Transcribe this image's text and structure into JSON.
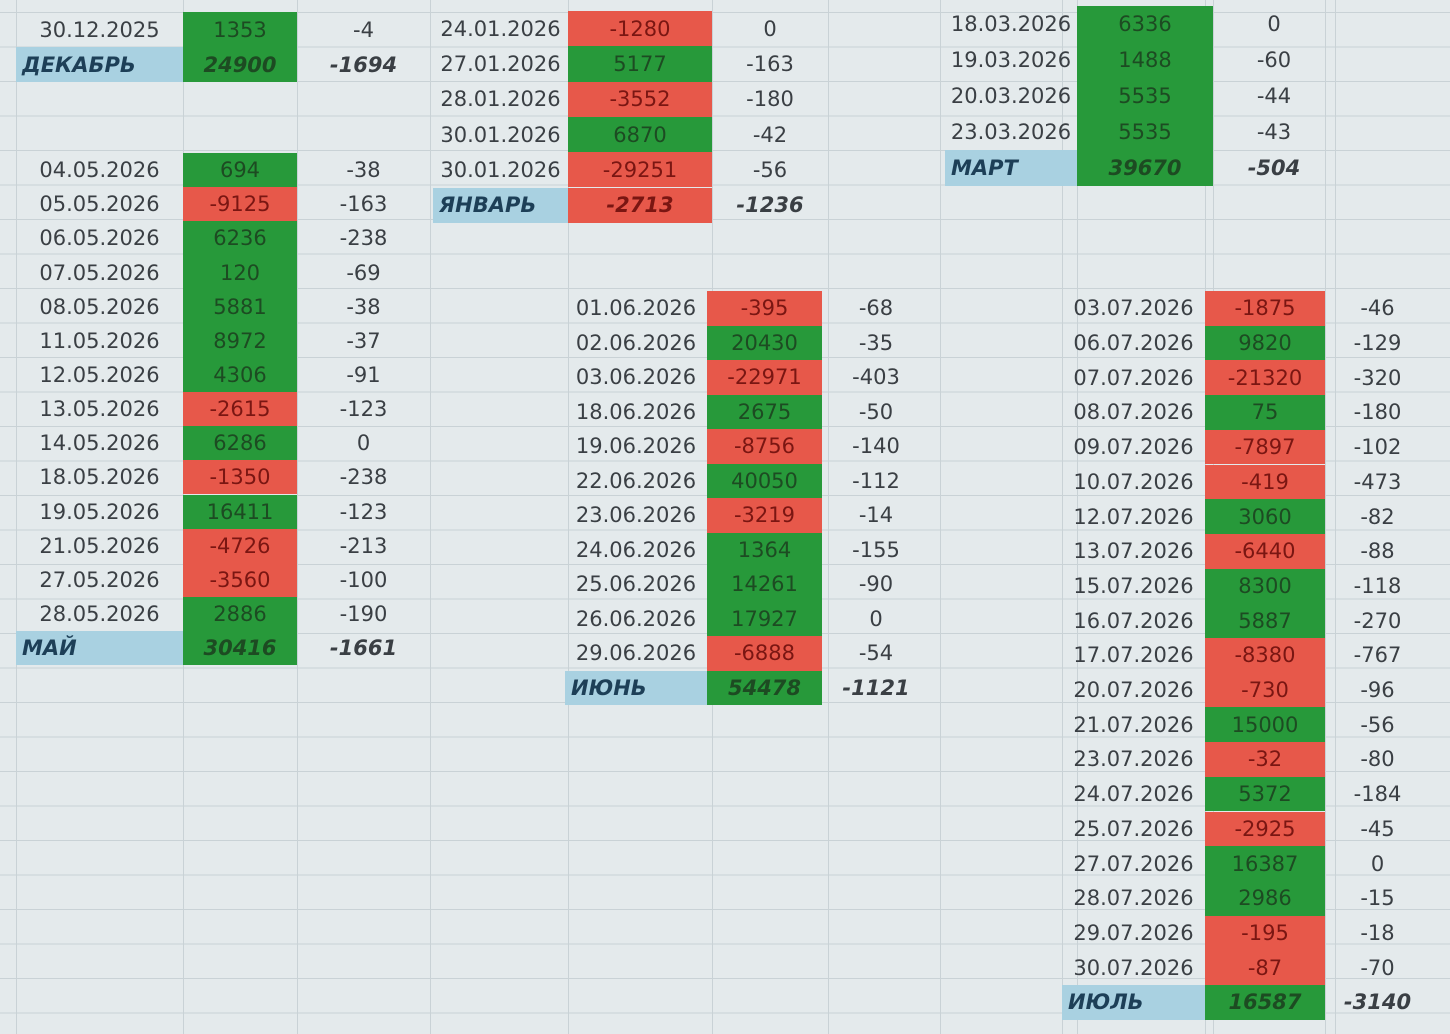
{
  "blocks": [
    {
      "rows": [
        [
          "30.12.2025",
          1353,
          -4
        ]
      ],
      "total": [
        "ДЕКАБРЬ",
        24900,
        -1694
      ]
    },
    {
      "rows": [
        [
          "04.05.2026",
          694,
          -38
        ],
        [
          "05.05.2026",
          -9125,
          -163
        ],
        [
          "06.05.2026",
          6236,
          -238
        ],
        [
          "07.05.2026",
          120,
          -69
        ],
        [
          "08.05.2026",
          5881,
          -38
        ],
        [
          "11.05.2026",
          8972,
          -37
        ],
        [
          "12.05.2026",
          4306,
          -91
        ],
        [
          "13.05.2026",
          -2615,
          -123
        ],
        [
          "14.05.2026",
          6286,
          0
        ],
        [
          "18.05.2026",
          -1350,
          -238
        ],
        [
          "19.05.2026",
          16411,
          -123
        ],
        [
          "21.05.2026",
          -4726,
          -213
        ],
        [
          "27.05.2026",
          -3560,
          -100
        ],
        [
          "28.05.2026",
          2886,
          -190
        ]
      ],
      "total": [
        "МАЙ",
        30416,
        -1661
      ]
    },
    {
      "rows": [
        [
          "24.01.2026",
          -1280,
          0
        ],
        [
          "27.01.2026",
          5177,
          -163
        ],
        [
          "28.01.2026",
          -3552,
          -180
        ],
        [
          "30.01.2026",
          6870,
          -42
        ],
        [
          "30.01.2026",
          -29251,
          -56
        ]
      ],
      "total": [
        "ЯНВАРЬ",
        -2713,
        -1236
      ]
    },
    {
      "rows": [
        [
          "18.03.2026",
          6336,
          0
        ],
        [
          "19.03.2026",
          1488,
          -60
        ],
        [
          "20.03.2026",
          5535,
          -44
        ],
        [
          "23.03.2026",
          5535,
          -43
        ]
      ],
      "total": [
        "МАРТ",
        39670,
        -504
      ]
    },
    {
      "rows": [
        [
          "01.06.2026",
          -395,
          -68
        ],
        [
          "02.06.2026",
          20430,
          -35
        ],
        [
          "03.06.2026",
          -22971,
          -403
        ],
        [
          "18.06.2026",
          2675,
          -50
        ],
        [
          "19.06.2026",
          -8756,
          -140
        ],
        [
          "22.06.2026",
          40050,
          -112
        ],
        [
          "23.06.2026",
          -3219,
          -14
        ],
        [
          "24.06.2026",
          1364,
          -155
        ],
        [
          "25.06.2026",
          14261,
          -90
        ],
        [
          "26.06.2026",
          17927,
          0
        ],
        [
          "29.06.2026",
          -6888,
          -54
        ]
      ],
      "total": [
        "ИЮНЬ",
        54478,
        -1121
      ]
    },
    {
      "rows": [
        [
          "03.07.2026",
          -1875,
          -46
        ],
        [
          "06.07.2026",
          9820,
          -129
        ],
        [
          "07.07.2026",
          -21320,
          -320
        ],
        [
          "08.07.2026",
          75,
          -180
        ],
        [
          "09.07.2026",
          -7897,
          -102
        ],
        [
          "10.07.2026",
          -419,
          -473
        ],
        [
          "12.07.2026",
          3060,
          -82
        ],
        [
          "13.07.2026",
          -6440,
          -88
        ],
        [
          "15.07.2026",
          8300,
          -118
        ],
        [
          "16.07.2026",
          5887,
          -270
        ],
        [
          "17.07.2026",
          -8380,
          -767
        ],
        [
          "20.07.2026",
          -730,
          -96
        ],
        [
          "21.07.2026",
          15000,
          -56
        ],
        [
          "23.07.2026",
          -32,
          -80
        ],
        [
          "24.07.2026",
          5372,
          -184
        ],
        [
          "25.07.2026",
          -2925,
          -45
        ],
        [
          "27.07.2026",
          16387,
          0
        ],
        [
          "28.07.2026",
          2986,
          -15
        ],
        [
          "29.07.2026",
          -195,
          -18
        ],
        [
          "30.07.2026",
          -87,
          -70
        ]
      ],
      "total": [
        "ИЮЛЬ",
        16587,
        -3140
      ]
    }
  ]
}
